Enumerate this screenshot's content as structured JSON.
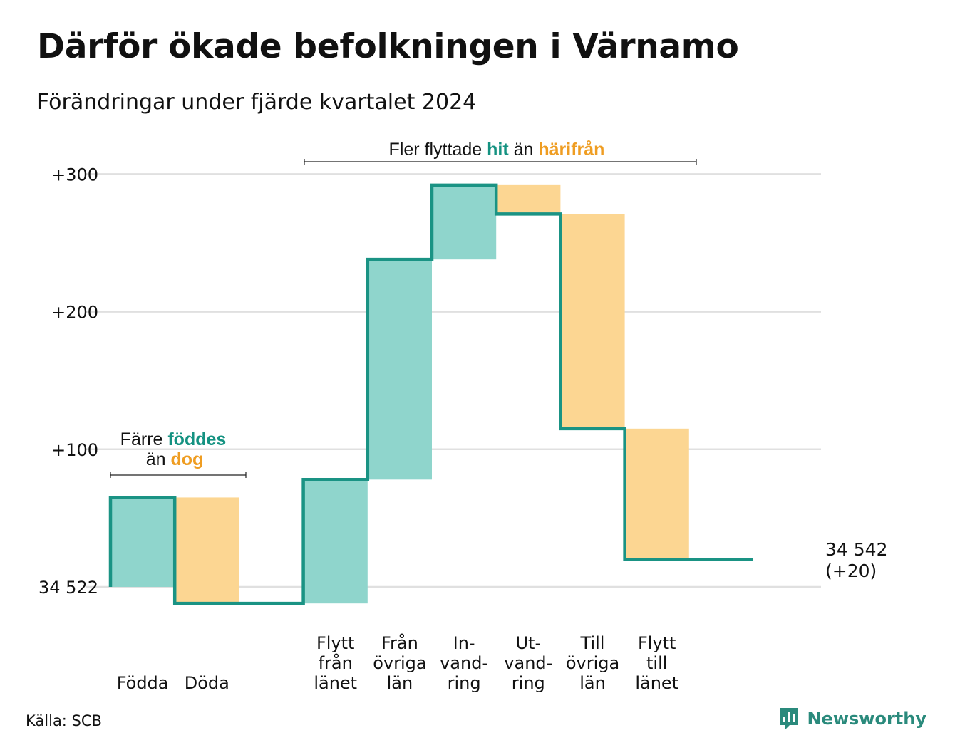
{
  "title": "Därför ökade befolkningen i Värnamo",
  "subtitle": "Förändringar under fjärde kvartalet 2024",
  "source": "Källa: SCB",
  "brand": {
    "name": "Newsworthy",
    "icon": "bar-chart-logo-icon"
  },
  "colors": {
    "increase_fill": "#8fd5cc",
    "decrease_fill": "#fcd692",
    "line": "#1a9384",
    "teal_text": "#149281",
    "orange_text": "#ef9d22",
    "grid": "#e0e0e0",
    "brand": "#2a8a7c"
  },
  "annotations": {
    "births": {
      "prefix": "Färre ",
      "highlight": "föddes",
      "middle": "än ",
      "highlight2": "dog"
    },
    "migration": {
      "prefix": "Fler flyttade ",
      "highlight": "hit",
      "middle": " än ",
      "highlight2": "härifrån"
    }
  },
  "end_label": {
    "line1": "34 542",
    "line2": "(+20)"
  },
  "chart_data": {
    "type": "bar",
    "subtype": "waterfall",
    "baseline": 34522,
    "baseline_label": "34 522",
    "final_value": 34542,
    "net_change": 20,
    "ylim": [
      -15,
      302
    ],
    "yticks": [
      {
        "value": 0,
        "label": "34 522"
      },
      {
        "value": 100,
        "label": "+100"
      },
      {
        "value": 200,
        "label": "+200"
      },
      {
        "value": 300,
        "label": "+300"
      }
    ],
    "grid": true,
    "steps": [
      {
        "label": [
          "Födda"
        ],
        "delta": 65,
        "direction": "increase"
      },
      {
        "label": [
          "Döda"
        ],
        "delta": -77,
        "direction": "decrease"
      },
      {
        "label": [],
        "delta": 0,
        "direction": "none"
      },
      {
        "label": [
          "Flytt",
          "från",
          "länet"
        ],
        "delta": 90,
        "direction": "increase"
      },
      {
        "label": [
          "Från",
          "övriga",
          "län"
        ],
        "delta": 160,
        "direction": "increase"
      },
      {
        "label": [
          "In-",
          "vand-",
          "ring"
        ],
        "delta": 54,
        "direction": "increase"
      },
      {
        "label": [
          "Ut-",
          "vand-",
          "ring"
        ],
        "delta": -21,
        "direction": "decrease"
      },
      {
        "label": [
          "Till",
          "övriga",
          "län"
        ],
        "delta": -156,
        "direction": "decrease"
      },
      {
        "label": [
          "Flytt",
          "till",
          "länet"
        ],
        "delta": -95,
        "direction": "decrease"
      },
      {
        "label": [],
        "delta": 0,
        "direction": "none"
      }
    ]
  }
}
